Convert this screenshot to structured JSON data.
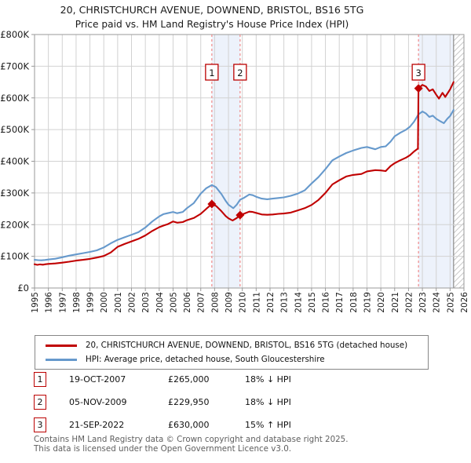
{
  "title": {
    "line1": "20, CHRISTCHURCH AVENUE, DOWNEND, BRISTOL, BS16 5TG",
    "line2": "Price paid vs. HM Land Registry's House Price Index (HPI)"
  },
  "legend": {
    "items": [
      {
        "label": "20, CHRISTCHURCH AVENUE, DOWNEND, BRISTOL, BS16 5TG (detached house)",
        "color": "#c00000"
      },
      {
        "label": "HPI: Average price, detached house, South Gloucestershire",
        "color": "#6699cc"
      }
    ]
  },
  "transactions": [
    {
      "num": "1",
      "date": "19-OCT-2007",
      "price": "£265,000",
      "delta": "18% ↓ HPI"
    },
    {
      "num": "2",
      "date": "05-NOV-2009",
      "price": "£229,950",
      "delta": "18% ↓ HPI"
    },
    {
      "num": "3",
      "date": "21-SEP-2022",
      "price": "£630,000",
      "delta": "15% ↑ HPI"
    }
  ],
  "footer": {
    "line1": "Contains HM Land Registry data © Crown copyright and database right 2025.",
    "line2": "This data is licensed under the Open Government Licence v3.0."
  },
  "chart_data": {
    "type": "line",
    "title": "20, CHRISTCHURCH AVENUE, DOWNEND, BRISTOL, BS16 5TG — Price paid vs. HPI",
    "xlabel": "",
    "ylabel": "",
    "units": "GBP thousands",
    "xlim": [
      1995,
      2026
    ],
    "ylim": [
      0,
      800
    ],
    "grid": true,
    "y_ticks": [
      {
        "v": 0,
        "label": "£0"
      },
      {
        "v": 100,
        "label": "£100K"
      },
      {
        "v": 200,
        "label": "£200K"
      },
      {
        "v": 300,
        "label": "£300K"
      },
      {
        "v": 400,
        "label": "£400K"
      },
      {
        "v": 500,
        "label": "£500K"
      },
      {
        "v": 600,
        "label": "£600K"
      },
      {
        "v": 700,
        "label": "£700K"
      },
      {
        "v": 800,
        "label": "£800K"
      }
    ],
    "x_ticks": [
      1995,
      1996,
      1997,
      1998,
      1999,
      2000,
      2001,
      2002,
      2003,
      2004,
      2005,
      2006,
      2007,
      2008,
      2009,
      2010,
      2011,
      2012,
      2013,
      2014,
      2015,
      2016,
      2017,
      2018,
      2019,
      2020,
      2021,
      2022,
      2023,
      2024,
      2025,
      2026
    ],
    "colors": {
      "price": "#c00000",
      "hpi": "#6699cc",
      "marker_line": "#f08a8a",
      "band": "#edf2fb",
      "grid": "#d2d2d2",
      "border": "#9a9a9a",
      "hatch": "#c9c9c9",
      "marker_box_border": "#bb0000",
      "tick_text": "#1a1a1a"
    },
    "ownership_bands": [
      [
        2007.8,
        2009.84
      ],
      [
        2022.72,
        2025.25
      ]
    ],
    "hatch_region": [
      2025.25,
      2026
    ],
    "markers": [
      {
        "label": "1",
        "x": 2007.8,
        "y": 265
      },
      {
        "label": "2",
        "x": 2009.84,
        "y": 230
      },
      {
        "label": "3",
        "x": 2022.72,
        "y": 630
      }
    ],
    "series": [
      {
        "name": "HPI: Average price, detached house, South Gloucestershire",
        "color": "#6699cc",
        "points": [
          [
            1995.0,
            89
          ],
          [
            1995.25,
            88
          ],
          [
            1995.5,
            87.5
          ],
          [
            1995.75,
            88.5
          ],
          [
            1996.0,
            90
          ],
          [
            1996.5,
            92.5
          ],
          [
            1997.0,
            97
          ],
          [
            1997.5,
            102
          ],
          [
            1998.0,
            106
          ],
          [
            1998.5,
            110
          ],
          [
            1999.0,
            114
          ],
          [
            1999.5,
            119
          ],
          [
            2000.0,
            128
          ],
          [
            2000.5,
            141
          ],
          [
            2001.0,
            152
          ],
          [
            2001.5,
            160
          ],
          [
            2002.0,
            168
          ],
          [
            2002.5,
            176
          ],
          [
            2003.0,
            191
          ],
          [
            2003.5,
            210
          ],
          [
            2004.0,
            226
          ],
          [
            2004.3,
            233
          ],
          [
            2004.6,
            236
          ],
          [
            2005.0,
            240
          ],
          [
            2005.3,
            236
          ],
          [
            2005.7,
            240
          ],
          [
            2006.0,
            252
          ],
          [
            2006.5,
            268
          ],
          [
            2007.0,
            298
          ],
          [
            2007.4,
            315
          ],
          [
            2007.8,
            325
          ],
          [
            2008.1,
            318
          ],
          [
            2008.5,
            296
          ],
          [
            2008.8,
            275
          ],
          [
            2009.0,
            263
          ],
          [
            2009.35,
            252
          ],
          [
            2009.6,
            263
          ],
          [
            2009.84,
            279
          ],
          [
            2010.1,
            284
          ],
          [
            2010.5,
            295
          ],
          [
            2010.75,
            293
          ],
          [
            2011.0,
            288
          ],
          [
            2011.4,
            282
          ],
          [
            2011.8,
            280
          ],
          [
            2012.2,
            282
          ],
          [
            2012.6,
            284
          ],
          [
            2013.0,
            286
          ],
          [
            2013.5,
            291
          ],
          [
            2014.0,
            298
          ],
          [
            2014.5,
            308
          ],
          [
            2015.0,
            330
          ],
          [
            2015.5,
            350
          ],
          [
            2016.0,
            375
          ],
          [
            2016.5,
            403
          ],
          [
            2017.0,
            415
          ],
          [
            2017.5,
            426
          ],
          [
            2018.0,
            434
          ],
          [
            2018.6,
            442
          ],
          [
            2019.0,
            445
          ],
          [
            2019.6,
            438
          ],
          [
            2020.0,
            445
          ],
          [
            2020.35,
            447
          ],
          [
            2020.7,
            462
          ],
          [
            2021.0,
            479
          ],
          [
            2021.4,
            490
          ],
          [
            2021.8,
            499
          ],
          [
            2022.1,
            509
          ],
          [
            2022.4,
            525
          ],
          [
            2022.72,
            548
          ],
          [
            2023.0,
            557
          ],
          [
            2023.25,
            551
          ],
          [
            2023.5,
            540
          ],
          [
            2023.75,
            544
          ],
          [
            2024.0,
            534
          ],
          [
            2024.3,
            526
          ],
          [
            2024.55,
            520
          ],
          [
            2024.8,
            534
          ],
          [
            2025.0,
            543
          ],
          [
            2025.25,
            562
          ]
        ]
      },
      {
        "name": "20, CHRISTCHURCH AVENUE, DOWNEND, BRISTOL, BS16 5TG (detached house)",
        "color": "#c00000",
        "points": [
          [
            1995.0,
            75
          ],
          [
            1995.2,
            73
          ],
          [
            1995.4,
            74.5
          ],
          [
            1995.6,
            73.5
          ],
          [
            1995.8,
            75
          ],
          [
            1996.0,
            76
          ],
          [
            1996.5,
            77.5
          ],
          [
            1997.0,
            80
          ],
          [
            1997.5,
            83
          ],
          [
            1998.0,
            86.5
          ],
          [
            1998.5,
            89
          ],
          [
            1999.0,
            92
          ],
          [
            1999.5,
            96
          ],
          [
            2000.0,
            101
          ],
          [
            2000.5,
            112
          ],
          [
            2001.0,
            130
          ],
          [
            2001.5,
            139
          ],
          [
            2002.0,
            147
          ],
          [
            2002.5,
            155
          ],
          [
            2003.0,
            166
          ],
          [
            2003.5,
            180
          ],
          [
            2004.0,
            192
          ],
          [
            2004.3,
            197
          ],
          [
            2004.6,
            201
          ],
          [
            2005.0,
            210
          ],
          [
            2005.3,
            206
          ],
          [
            2005.7,
            208
          ],
          [
            2006.0,
            214
          ],
          [
            2006.5,
            221
          ],
          [
            2007.0,
            234
          ],
          [
            2007.4,
            250
          ],
          [
            2007.8,
            265
          ],
          [
            2008.1,
            259
          ],
          [
            2008.5,
            242
          ],
          [
            2008.8,
            227
          ],
          [
            2009.0,
            220
          ],
          [
            2009.3,
            213
          ],
          [
            2009.6,
            221
          ],
          [
            2009.84,
            230
          ],
          [
            2010.1,
            234
          ],
          [
            2010.5,
            241
          ],
          [
            2010.75,
            240
          ],
          [
            2011.0,
            237
          ],
          [
            2011.4,
            232
          ],
          [
            2011.8,
            231
          ],
          [
            2012.2,
            232
          ],
          [
            2012.6,
            234
          ],
          [
            2013.0,
            235
          ],
          [
            2013.5,
            238
          ],
          [
            2014.0,
            245
          ],
          [
            2014.5,
            252
          ],
          [
            2015.0,
            262
          ],
          [
            2015.5,
            278
          ],
          [
            2016.0,
            300
          ],
          [
            2016.5,
            327
          ],
          [
            2017.0,
            340
          ],
          [
            2017.5,
            352
          ],
          [
            2018.0,
            357
          ],
          [
            2018.6,
            360
          ],
          [
            2019.0,
            368
          ],
          [
            2019.6,
            372
          ],
          [
            2020.0,
            371
          ],
          [
            2020.35,
            369
          ],
          [
            2020.7,
            385
          ],
          [
            2021.0,
            394
          ],
          [
            2021.4,
            403
          ],
          [
            2021.8,
            411
          ],
          [
            2022.1,
            419
          ],
          [
            2022.4,
            431
          ],
          [
            2022.68,
            440
          ],
          [
            2022.72,
            630
          ],
          [
            2023.0,
            641
          ],
          [
            2023.25,
            636
          ],
          [
            2023.5,
            622
          ],
          [
            2023.75,
            627
          ],
          [
            2024.0,
            610
          ],
          [
            2024.2,
            598
          ],
          [
            2024.45,
            616
          ],
          [
            2024.65,
            603
          ],
          [
            2025.0,
            627
          ],
          [
            2025.25,
            650
          ]
        ]
      }
    ]
  }
}
